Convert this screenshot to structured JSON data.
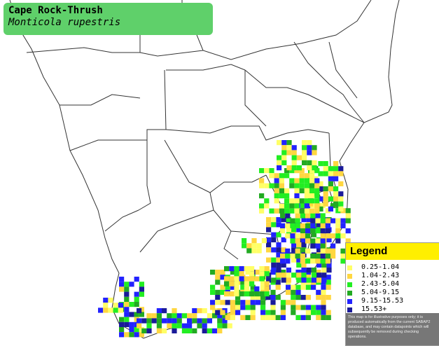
{
  "title": {
    "common_name": "Cape Rock-Thrush",
    "scientific_name": "Monticola rupestris"
  },
  "legend": {
    "title": "Legend",
    "items": [
      {
        "label": "0.25-1.04",
        "color": "#ffff66"
      },
      {
        "label": "1.04-2.43",
        "color": "#ffd740"
      },
      {
        "label": "2.43-5.04",
        "color": "#22ee22"
      },
      {
        "label": "5.04-9.15",
        "color": "#22aa22"
      },
      {
        "label": "9.15-15.53",
        "color": "#2222ff"
      },
      {
        "label": "15.53+",
        "color": "#1a1a99"
      }
    ],
    "disclaimer": "This map is for illustrative purposes only; it is produced automatically from the current SABAP2 database, and may contain datapoints which will subsequently be removed during checking operations."
  },
  "map": {
    "land_color": "#ffffff",
    "border_color": "#333333"
  }
}
